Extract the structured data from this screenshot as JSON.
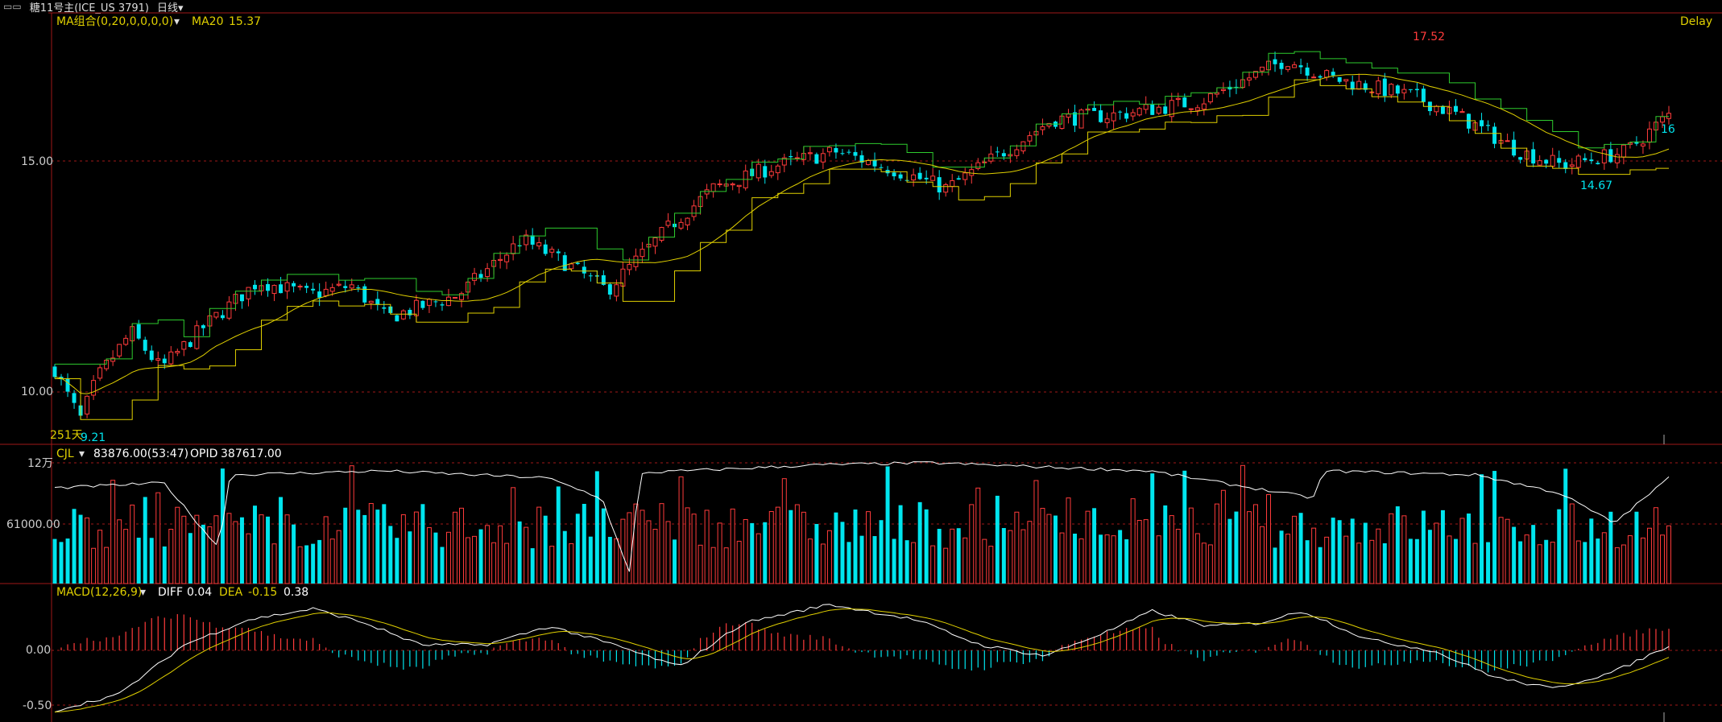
{
  "header": {
    "title": "糖11号主(ICE_US 3791)",
    "period": "日线",
    "delay": "Delay"
  },
  "price_panel": {
    "ma_label": "MA组合(0,20,0,0,0,0)",
    "ma20_label": "MA20",
    "ma20_value": "15.37",
    "day_count": "251天",
    "high_label": "17.52",
    "low_label": "9.21",
    "local_low_label": "14.67",
    "last_label": "16",
    "ticks": [
      "15.00",
      "10.00"
    ]
  },
  "volume_panel": {
    "label": "CJL",
    "volume": "83876.00(53:47)",
    "opid_label": "OPID",
    "opid_value": "387617.00",
    "ticks": [
      "12万",
      "61000.00"
    ]
  },
  "macd_panel": {
    "label": "MACD(12,26,9)",
    "diff_label": "DIFF",
    "diff_value": "0.04",
    "dea_label": "DEA",
    "dea_value": "-0.15",
    "macd_value": "0.38",
    "ticks": [
      "0.00",
      "-0.50"
    ]
  },
  "colors": {
    "up": "#ff3b3b",
    "down": "#00e5ee",
    "ma": "#e0d000",
    "step_green": "#2ecc2e",
    "white_line": "#ffffff",
    "frame": "#a01818",
    "axis_text": "#cccccc"
  },
  "chart_data": {
    "type": "candlestick",
    "bars": 251,
    "price": {
      "ylim": [
        9.0,
        18.2
      ],
      "anchors": [
        [
          0,
          10.5
        ],
        [
          2,
          10.1
        ],
        [
          6,
          9.4
        ],
        [
          10,
          10.3
        ],
        [
          18,
          11.3
        ],
        [
          25,
          10.5
        ],
        [
          35,
          11.4
        ],
        [
          48,
          12.4
        ],
        [
          60,
          12.1
        ],
        [
          70,
          12.3
        ],
        [
          78,
          11.6
        ],
        [
          95,
          12.1
        ],
        [
          110,
          13.3
        ],
        [
          120,
          12.8
        ],
        [
          130,
          12.2
        ],
        [
          145,
          13.6
        ],
        [
          155,
          14.4
        ],
        [
          170,
          14.9
        ],
        [
          184,
          15.2
        ],
        [
          198,
          14.8
        ],
        [
          210,
          14.4
        ],
        [
          225,
          15.3
        ],
        [
          235,
          15.9
        ],
        [
          250,
          16.0
        ],
        [
          270,
          16.3
        ],
        [
          290,
          17.2
        ],
        [
          300,
          16.8
        ],
        [
          320,
          16.4
        ],
        [
          330,
          16.0
        ],
        [
          345,
          15.2
        ],
        [
          355,
          14.9
        ],
        [
          370,
          15.2
        ],
        [
          380,
          16.0
        ]
      ],
      "high": 17.52,
      "low": 9.21,
      "local_low": 14.67,
      "last": 16.0
    },
    "volume": {
      "ylim": [
        0,
        125000
      ],
      "ticks": [
        120000,
        61000
      ]
    },
    "macd": {
      "ylim": [
        -0.65,
        0.6
      ],
      "anchors": [
        [
          0,
          -0.55
        ],
        [
          15,
          -0.4
        ],
        [
          30,
          0.05
        ],
        [
          45,
          0.28
        ],
        [
          60,
          0.38
        ],
        [
          72,
          0.25
        ],
        [
          85,
          0.05
        ],
        [
          100,
          0.05
        ],
        [
          115,
          0.22
        ],
        [
          130,
          0.05
        ],
        [
          145,
          -0.15
        ],
        [
          160,
          0.25
        ],
        [
          180,
          0.42
        ],
        [
          200,
          0.28
        ],
        [
          215,
          0.05
        ],
        [
          230,
          -0.05
        ],
        [
          245,
          0.18
        ],
        [
          255,
          0.36
        ],
        [
          268,
          0.22
        ],
        [
          280,
          0.25
        ],
        [
          290,
          0.36
        ],
        [
          305,
          0.1
        ],
        [
          320,
          0.0
        ],
        [
          335,
          -0.25
        ],
        [
          348,
          -0.35
        ],
        [
          362,
          -0.2
        ],
        [
          375,
          0.04
        ]
      ],
      "diff": 0.04,
      "dea": -0.15
    }
  }
}
